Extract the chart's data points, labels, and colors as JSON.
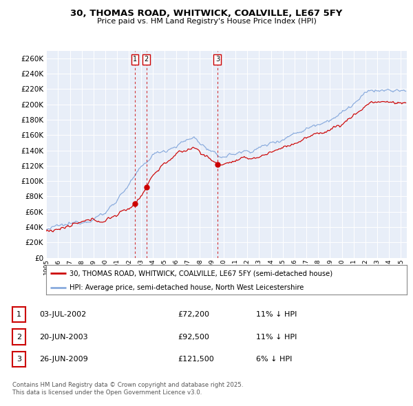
{
  "title": "30, THOMAS ROAD, WHITWICK, COALVILLE, LE67 5FY",
  "subtitle": "Price paid vs. HM Land Registry's House Price Index (HPI)",
  "ylim": [
    0,
    270000
  ],
  "yticks": [
    0,
    20000,
    40000,
    60000,
    80000,
    100000,
    120000,
    140000,
    160000,
    180000,
    200000,
    220000,
    240000,
    260000
  ],
  "sale_color": "#cc0000",
  "hpi_color": "#88aadd",
  "legend_sale": "30, THOMAS ROAD, WHITWICK, COALVILLE, LE67 5FY (semi-detached house)",
  "legend_hpi": "HPI: Average price, semi-detached house, North West Leicestershire",
  "transactions": [
    {
      "num": 1,
      "date": "03-JUL-2002",
      "price": 72200,
      "pct": "11%",
      "dir": "↓",
      "year": 2002.5
    },
    {
      "num": 2,
      "date": "20-JUN-2003",
      "price": 92500,
      "pct": "11%",
      "dir": "↓",
      "year": 2003.47
    },
    {
      "num": 3,
      "date": "26-JUN-2009",
      "price": 121500,
      "pct": "6%",
      "dir": "↓",
      "year": 2009.48
    }
  ],
  "footer": "Contains HM Land Registry data © Crown copyright and database right 2025.\nThis data is licensed under the Open Government Licence v3.0.",
  "chart_bg": "#e8eef8",
  "grid_color": "#ffffff",
  "background_color": "#ffffff"
}
